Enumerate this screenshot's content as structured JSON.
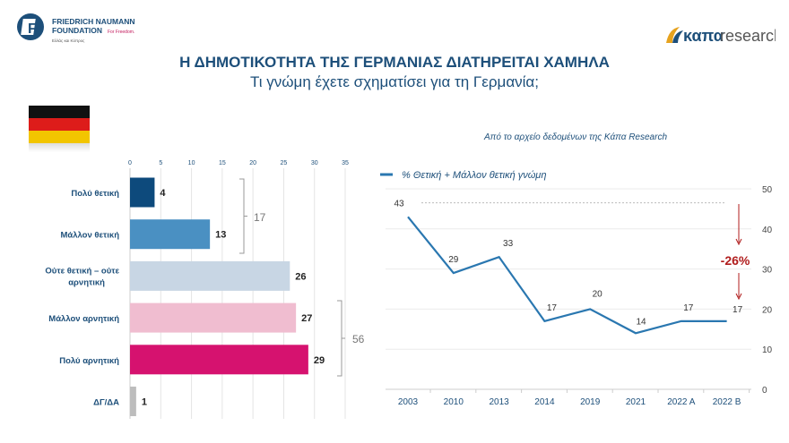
{
  "header": {
    "title": "Η ΔΗΜΟΤΙΚΟΤΗΤΑ ΤΗΣ ΓΕΡΜΑΝΙΑΣ ΔΙΑΤΗΡΕΙΤΑΙ ΧΑΜΗΛΑ",
    "subtitle": "Τι γνώμη έχετε σχηματίσει για τη Γερμανία;",
    "logo_left": {
      "line1": "FRIEDRICH NAUMANN",
      "line2": "FOUNDATION",
      "tagline": "For Freedom.",
      "region": "Ελλάς και Κύπρος"
    },
    "logo_right": {
      "brand": "καπα",
      "suffix": "research"
    }
  },
  "colors": {
    "title": "#1d4f7a",
    "line": "#2a77b0",
    "accent_red": "#b01c1c"
  },
  "chart_data": [
    {
      "type": "bar",
      "orientation": "horizontal",
      "categories": [
        "Πολύ θετική",
        "Μάλλον θετική",
        "Ούτε θετική – ούτε αρνητική",
        "Μάλλον αρνητική",
        "Πολύ αρνητική",
        "ΔΓ/ΔΑ"
      ],
      "values": [
        4,
        13,
        26,
        27,
        29,
        1
      ],
      "colors": [
        "#0d4a7c",
        "#4a90c2",
        "#c8d6e4",
        "#f0bdd0",
        "#d6126f",
        "#bdbdbd"
      ],
      "xlim": [
        0,
        35
      ],
      "xticks": [
        0,
        5,
        10,
        15,
        20,
        25,
        30,
        35
      ],
      "grid": true,
      "annotations": [
        {
          "label": "17",
          "groups": [
            "Πολύ θετική",
            "Μάλλον θετική"
          ]
        },
        {
          "label": "56",
          "groups": [
            "Μάλλον αρνητική",
            "Πολύ αρνητική"
          ]
        }
      ]
    },
    {
      "type": "line",
      "title": "Από το αρχείο δεδομένων της Κάπα Research",
      "categories": [
        "2003",
        "2010",
        "2013",
        "2014",
        "2019",
        "2021",
        "2022 A",
        "2022 B"
      ],
      "series": [
        {
          "name": "% Θετική + Μάλλον θετική γνώμη",
          "values": [
            43,
            29,
            33,
            17,
            20,
            14,
            17,
            17
          ]
        }
      ],
      "ylim": [
        0,
        50
      ],
      "yticks": [
        0,
        10,
        20,
        30,
        40,
        50
      ],
      "y_axis_side": "right",
      "grid": true,
      "legend": "top-left",
      "annotations": [
        {
          "label": "-26%",
          "color": "#b01c1c"
        }
      ]
    }
  ]
}
